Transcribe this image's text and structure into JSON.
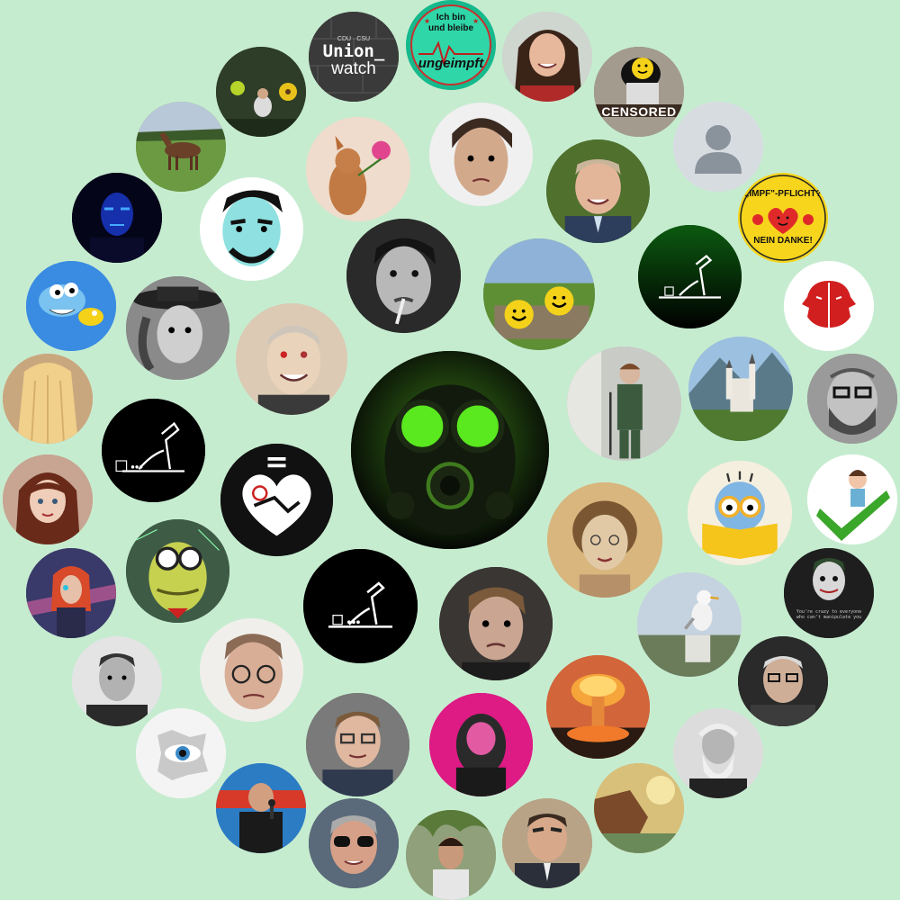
{
  "colors": {
    "background": "#c6ecd0",
    "center_glow": "#4fd11f"
  },
  "labels": {
    "union_small": "CDU · CSU",
    "union_line1": "Union_",
    "union_line2": "watch",
    "ungeimpft_line1": "Ich bin",
    "ungeimpft_line2": "und bleibe",
    "ungeimpft_line3": "ungeimpft",
    "censored": "CENSORED",
    "impfpflicht_line1": "„IMPF\"-PFLICHT?",
    "impfpflicht_line2": "NEIN DANKE!",
    "joker_caption": "You're crazy to everyone who can't manipulate you"
  }
}
